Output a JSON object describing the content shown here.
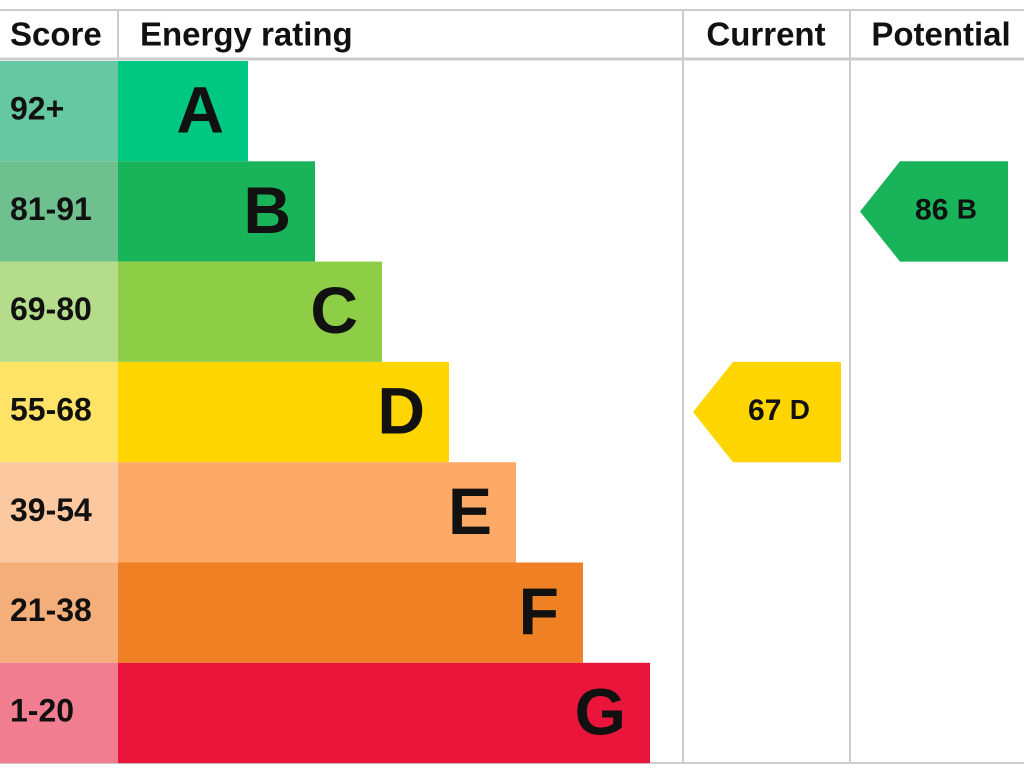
{
  "header": {
    "score": "Score",
    "rating": "Energy rating",
    "current": "Current",
    "potential": "Potential"
  },
  "bands": [
    {
      "score": "92+",
      "letter": "A",
      "color": "#00c781",
      "score_color": "#66c8a3"
    },
    {
      "score": "81-91",
      "letter": "B",
      "color": "#19b459",
      "score_color": "#6fc08f"
    },
    {
      "score": "69-80",
      "letter": "C",
      "color": "#8dce46",
      "score_color": "#b4dc8a"
    },
    {
      "score": "55-68",
      "letter": "D",
      "color": "#ffd500",
      "score_color": "#ffe366"
    },
    {
      "score": "39-54",
      "letter": "E",
      "color": "#fcaa65",
      "score_color": "#fcc8a0"
    },
    {
      "score": "21-38",
      "letter": "F",
      "color": "#ef8023",
      "score_color": "#f3ae7a"
    },
    {
      "score": "1-20",
      "letter": "G",
      "color": "#e9153b",
      "score_color": "#f07e90"
    }
  ],
  "current": {
    "value": 67,
    "letter": "D"
  },
  "potential": {
    "value": 86,
    "letter": "B"
  }
}
